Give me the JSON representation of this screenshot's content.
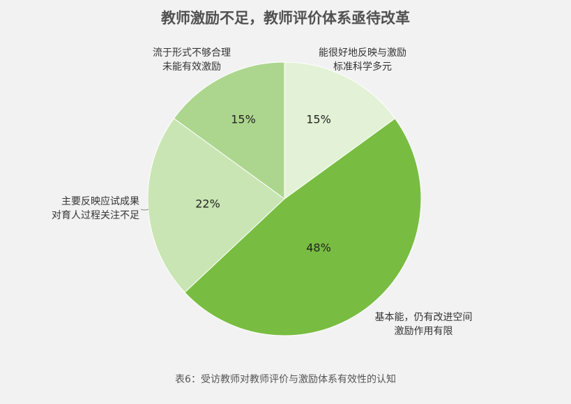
{
  "chart_data": {
    "type": "pie",
    "title": "教师激励不足，教师评价体系亟待改革",
    "caption": "表6：受访教师对教师评价与激励体系有效性的认知",
    "start": "12 o'clock, clockwise",
    "slices": [
      {
        "label": [
          "能很好地反映与激励",
          "标准科学多元"
        ],
        "value": 15,
        "display": "15%",
        "color": "#e3f2d6"
      },
      {
        "label": [
          "基本能，仍有改进空间",
          "激励作用有限"
        ],
        "value": 48,
        "display": "48%",
        "color": "#78bd42"
      },
      {
        "label": [
          "主要反映应试成果",
          "对育人过程关注不足"
        ],
        "value": 22,
        "display": "22%",
        "color": "#c9e5b3"
      },
      {
        "label": [
          "流于形式不够合理",
          "未能有效激励"
        ],
        "value": 15,
        "display": "15%",
        "color": "#acd68e"
      }
    ]
  }
}
